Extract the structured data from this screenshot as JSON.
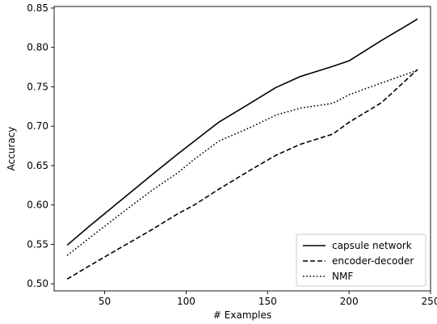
{
  "chart_data": {
    "type": "line",
    "title": "",
    "xlabel": "# Examples",
    "ylabel": "Accuracy",
    "xlim": [
      19,
      250
    ],
    "ylim": [
      0.491,
      0.852
    ],
    "x_ticks": [
      50,
      100,
      150,
      200,
      250
    ],
    "y_ticks": [
      0.5,
      0.55,
      0.6,
      0.65,
      0.7,
      0.75,
      0.8,
      0.85
    ],
    "x_tick_labels": [
      "50",
      "100",
      "150",
      "200",
      "250"
    ],
    "y_tick_labels": [
      "0.50",
      "0.55",
      "0.60",
      "0.65",
      "0.70",
      "0.75",
      "0.80",
      "0.85"
    ],
    "grid": false,
    "legend_position": "lower-right",
    "series": [
      {
        "name": "capsule network",
        "style": "solid",
        "color": "#000000",
        "x": [
          27,
          40,
          60,
          80,
          95,
          105,
          120,
          140,
          155,
          170,
          190,
          200,
          220,
          242
        ],
        "y": [
          0.549,
          0.572,
          0.606,
          0.64,
          0.665,
          0.681,
          0.705,
          0.73,
          0.749,
          0.763,
          0.776,
          0.783,
          0.809,
          0.836
        ]
      },
      {
        "name": "encoder-decoder",
        "style": "dashed",
        "color": "#000000",
        "x": [
          27,
          40,
          60,
          80,
          95,
          105,
          120,
          140,
          155,
          170,
          190,
          200,
          220,
          242
        ],
        "y": [
          0.506,
          0.522,
          0.546,
          0.57,
          0.589,
          0.6,
          0.62,
          0.645,
          0.663,
          0.677,
          0.69,
          0.705,
          0.73,
          0.772
        ]
      },
      {
        "name": "NMF",
        "style": "dotted",
        "color": "#000000",
        "x": [
          27,
          40,
          60,
          80,
          95,
          105,
          120,
          140,
          155,
          170,
          190,
          200,
          220,
          242
        ],
        "y": [
          0.536,
          0.557,
          0.589,
          0.62,
          0.641,
          0.658,
          0.681,
          0.699,
          0.714,
          0.723,
          0.729,
          0.74,
          0.755,
          0.771
        ]
      }
    ]
  }
}
